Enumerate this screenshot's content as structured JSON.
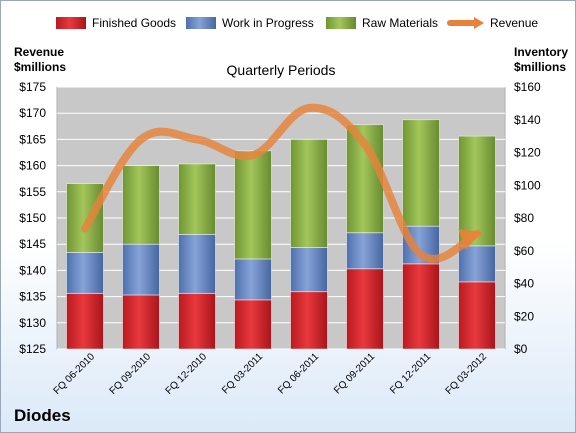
{
  "chart_data": {
    "type": "bar",
    "stacked": true,
    "title": "Quarterly Periods",
    "brand": "Diodes",
    "categories": [
      "FQ 06-2010",
      "FQ 09-2010",
      "FQ 12-2010",
      "FQ 03-2011",
      "FQ 06-2011",
      "FQ 09-2011",
      "FQ 12-2011",
      "FQ 03-2012"
    ],
    "left_axis": {
      "label_line1": "Revenue",
      "label_line2": "$millions",
      "min": 125,
      "max": 175,
      "step": 5,
      "tick_labels": [
        "$125",
        "$130",
        "$135",
        "$140",
        "$145",
        "$150",
        "$155",
        "$160",
        "$165",
        "$170",
        "$175"
      ]
    },
    "right_axis": {
      "label_line1": "Inventory",
      "label_line2": "$millions",
      "min": 0,
      "max": 160,
      "step": 20,
      "tick_labels": [
        "$0",
        "$20",
        "$40",
        "$60",
        "$80",
        "$100",
        "$120",
        "$140",
        "$160"
      ]
    },
    "series": [
      {
        "name": "Finished Goods",
        "axis": "right",
        "color": "#d9262b",
        "values": [
          34,
          33,
          34,
          30,
          35,
          49,
          52,
          41
        ]
      },
      {
        "name": "Work in Progress",
        "axis": "right",
        "color": "#6a8ccc",
        "values": [
          25,
          31,
          36,
          25,
          27,
          22,
          23,
          22
        ]
      },
      {
        "name": "Raw Materials",
        "axis": "right",
        "color": "#8fb24a",
        "values": [
          42,
          48,
          43,
          66,
          66,
          66,
          65,
          67
        ]
      },
      {
        "name": "Revenue",
        "axis": "left",
        "type": "line",
        "color": "#e8823a",
        "values": [
          148,
          165,
          165,
          162,
          171,
          164,
          143,
          147
        ]
      }
    ],
    "grid": true,
    "legend_position": "top"
  }
}
